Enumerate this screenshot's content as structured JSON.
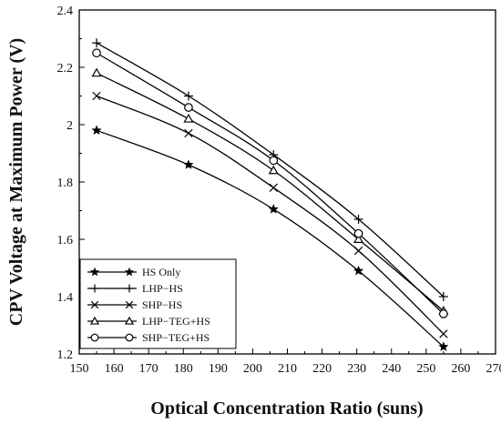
{
  "chart_data": {
    "type": "line",
    "xlabel": "Optical Concentration Ratio (suns)",
    "ylabel": "CPV Voltage at Maximum Power (V)",
    "xlim": [
      150,
      270
    ],
    "ylim": [
      1.2,
      2.4
    ],
    "xticks": [
      150,
      160,
      170,
      180,
      190,
      200,
      210,
      220,
      230,
      240,
      250,
      260,
      270
    ],
    "yticks": [
      1.2,
      1.4,
      1.6,
      1.8,
      2.0,
      2.2,
      2.4
    ],
    "xtick_labels": [
      "150",
      "160",
      "170",
      "180",
      "190",
      "200",
      "210",
      "220",
      "230",
      "240",
      "250",
      "260",
      "270"
    ],
    "ytick_labels": [
      "1.2",
      "1.4",
      "1.6",
      "1.8",
      "2",
      "2.2",
      "2.4"
    ],
    "grid": false,
    "legend_position": "bottom-left",
    "x": [
      155,
      181.5,
      206,
      230.5,
      255
    ],
    "series": [
      {
        "name": "HS Only",
        "marker": "star",
        "values": [
          1.98,
          1.86,
          1.705,
          1.49,
          1.225
        ]
      },
      {
        "name": "LHP−HS",
        "marker": "plus",
        "values": [
          2.285,
          2.1,
          1.895,
          1.67,
          1.4
        ]
      },
      {
        "name": "SHP−HS",
        "marker": "x",
        "values": [
          2.1,
          1.97,
          1.78,
          1.56,
          1.27
        ]
      },
      {
        "name": "LHP−TEG+HS",
        "marker": "triangle",
        "values": [
          2.18,
          2.02,
          1.84,
          1.6,
          1.35
        ]
      },
      {
        "name": "SHP−TEG+HS",
        "marker": "circle",
        "values": [
          2.25,
          2.06,
          1.875,
          1.62,
          1.34
        ]
      }
    ],
    "line_color": "#000000"
  }
}
